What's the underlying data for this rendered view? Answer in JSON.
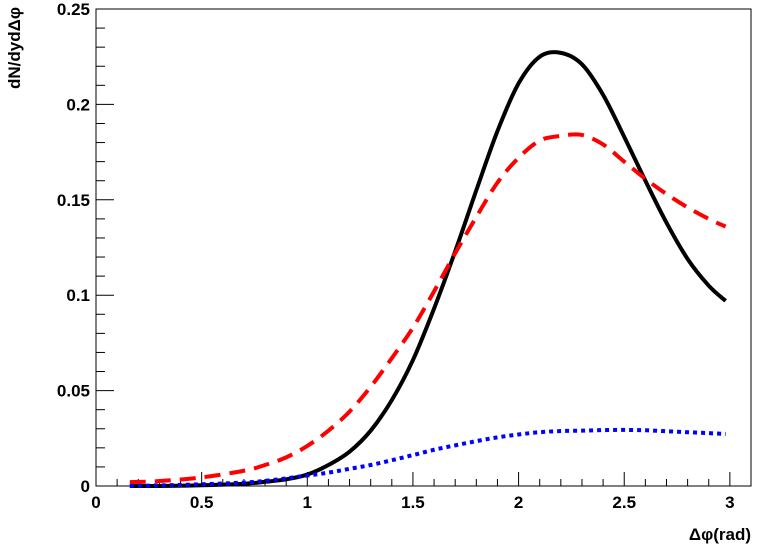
{
  "chart_data": {
    "type": "line",
    "xlabel": "Δφ(rad)",
    "ylabel": "dN/dydΔφ",
    "xlim": [
      0,
      3.1
    ],
    "ylim": [
      0,
      0.25
    ],
    "x_ticks": [
      "0",
      "0.5",
      "1",
      "1.5",
      "2",
      "2.5",
      "3"
    ],
    "y_ticks": [
      "0",
      "0.05",
      "0.1",
      "0.15",
      "0.2",
      "0.25"
    ],
    "grid": false,
    "legend": "none",
    "series": [
      {
        "color": "#000000",
        "style": "solid",
        "x": [
          0.16,
          0.3,
          0.5,
          0.7,
          0.8,
          0.9,
          1.0,
          1.1,
          1.2,
          1.3,
          1.4,
          1.5,
          1.6,
          1.7,
          1.8,
          1.9,
          2.0,
          2.1,
          2.2,
          2.3,
          2.4,
          2.5,
          2.6,
          2.7,
          2.8,
          2.9,
          2.98
        ],
        "values": [
          0.0,
          0.0,
          0.0004,
          0.0012,
          0.0022,
          0.0035,
          0.006,
          0.011,
          0.018,
          0.029,
          0.045,
          0.066,
          0.093,
          0.123,
          0.155,
          0.186,
          0.211,
          0.225,
          0.227,
          0.221,
          0.205,
          0.183,
          0.16,
          0.138,
          0.119,
          0.105,
          0.097
        ]
      },
      {
        "color": "#ff0000",
        "style": "dashed",
        "x": [
          0.16,
          0.3,
          0.5,
          0.7,
          0.8,
          0.9,
          1.0,
          1.1,
          1.2,
          1.3,
          1.4,
          1.5,
          1.6,
          1.7,
          1.8,
          1.9,
          2.0,
          2.1,
          2.2,
          2.3,
          2.4,
          2.5,
          2.6,
          2.7,
          2.8,
          2.9,
          2.98
        ],
        "values": [
          0.002,
          0.0026,
          0.0045,
          0.008,
          0.011,
          0.015,
          0.021,
          0.029,
          0.039,
          0.052,
          0.067,
          0.083,
          0.102,
          0.122,
          0.141,
          0.159,
          0.172,
          0.181,
          0.1835,
          0.184,
          0.179,
          0.17,
          0.161,
          0.153,
          0.146,
          0.14,
          0.136
        ]
      },
      {
        "color": "#0000ff",
        "style": "dotted",
        "x": [
          0.16,
          0.3,
          0.5,
          0.7,
          0.8,
          0.9,
          1.0,
          1.1,
          1.2,
          1.3,
          1.4,
          1.5,
          1.6,
          1.7,
          1.8,
          1.9,
          2.0,
          2.1,
          2.2,
          2.3,
          2.4,
          2.5,
          2.6,
          2.7,
          2.8,
          2.9,
          2.98
        ],
        "values": [
          0.0,
          0.0003,
          0.0009,
          0.0018,
          0.0027,
          0.004,
          0.0055,
          0.007,
          0.009,
          0.011,
          0.0135,
          0.0162,
          0.019,
          0.0213,
          0.0235,
          0.0255,
          0.027,
          0.0282,
          0.0288,
          0.029,
          0.0293,
          0.0294,
          0.0292,
          0.0287,
          0.0282,
          0.0277,
          0.0273
        ]
      }
    ]
  }
}
